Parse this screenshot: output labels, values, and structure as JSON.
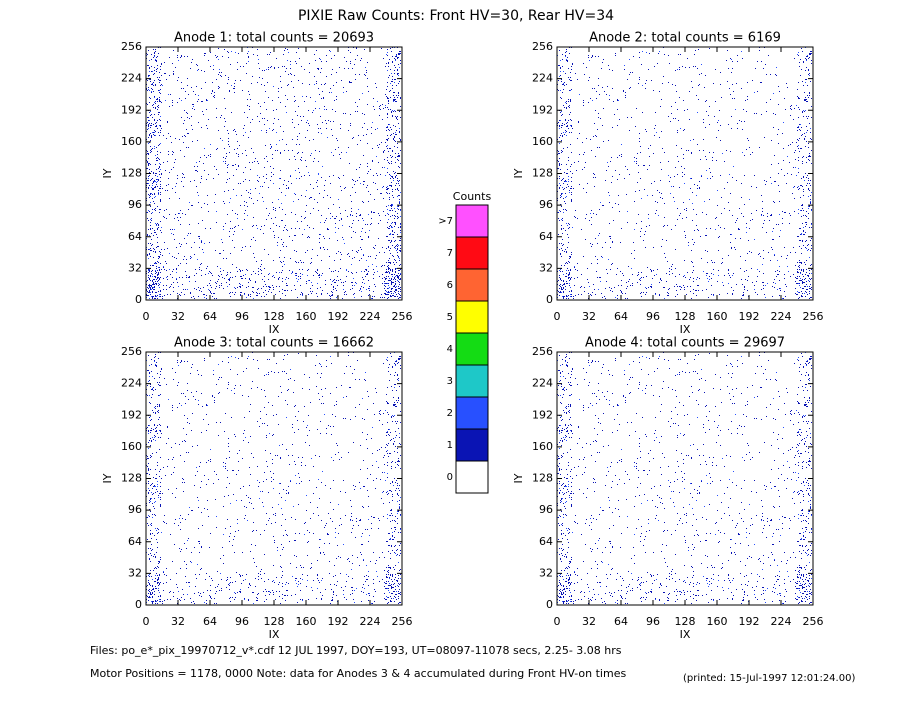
{
  "title": "PIXIE Raw Counts:  Front HV=30, Rear HV=34",
  "chart_data": [
    {
      "type": "heatmap",
      "title": "Anode 1: total counts = 20693",
      "total_counts": 20693,
      "xlabel": "IX",
      "ylabel": "IY",
      "xlim": [
        0,
        256
      ],
      "ylim": [
        0,
        256
      ],
      "xticks": [
        0,
        32,
        64,
        96,
        128,
        160,
        192,
        224,
        256
      ],
      "yticks": [
        0,
        32,
        64,
        96,
        128,
        160,
        192,
        224,
        256
      ]
    },
    {
      "type": "heatmap",
      "title": "Anode 2: total counts = 6169",
      "total_counts": 6169,
      "xlabel": "IX",
      "ylabel": "IY",
      "xlim": [
        0,
        256
      ],
      "ylim": [
        0,
        256
      ],
      "xticks": [
        0,
        32,
        64,
        96,
        128,
        160,
        192,
        224,
        256
      ],
      "yticks": [
        0,
        32,
        64,
        96,
        128,
        160,
        192,
        224,
        256
      ]
    },
    {
      "type": "heatmap",
      "title": "Anode 3: total counts = 16662",
      "total_counts": 16662,
      "xlabel": "IX",
      "ylabel": "IY",
      "xlim": [
        0,
        256
      ],
      "ylim": [
        0,
        256
      ],
      "xticks": [
        0,
        32,
        64,
        96,
        128,
        160,
        192,
        224,
        256
      ],
      "yticks": [
        0,
        32,
        64,
        96,
        128,
        160,
        192,
        224,
        256
      ]
    },
    {
      "type": "heatmap",
      "title": "Anode 4: total counts = 29697",
      "total_counts": 29697,
      "xlabel": "IX",
      "ylabel": "IY",
      "xlim": [
        0,
        256
      ],
      "ylim": [
        0,
        256
      ],
      "xticks": [
        0,
        32,
        64,
        96,
        128,
        160,
        192,
        224,
        256
      ],
      "yticks": [
        0,
        32,
        64,
        96,
        128,
        160,
        192,
        224,
        256
      ]
    }
  ],
  "colorbar": {
    "title": "Counts",
    "levels": [
      {
        "label": "0",
        "color": "#ffffff"
      },
      {
        "label": "1",
        "color": "#0a14b4"
      },
      {
        "label": "2",
        "color": "#2850ff"
      },
      {
        "label": "3",
        "color": "#1ec8c8"
      },
      {
        "label": "4",
        "color": "#14dc14"
      },
      {
        "label": "5",
        "color": "#ffff00"
      },
      {
        "label": "6",
        "color": "#ff6432"
      },
      {
        "label": "7",
        "color": "#ff0a14"
      },
      {
        "label": ">7",
        "color": "#ff50ff"
      }
    ]
  },
  "footer": {
    "files": "Files: po_e*_pix_19970712_v*.cdf    12 JUL 1997, DOY=193, UT=08097-11078 secs,  2.25- 3.08 hrs",
    "motor": "Motor Positions = 1178, 0000   Note: data for Anodes 3 & 4 accumulated during Front HV-on times",
    "printed": "(printed: 15-Jul-1997 12:01:24.00)"
  }
}
